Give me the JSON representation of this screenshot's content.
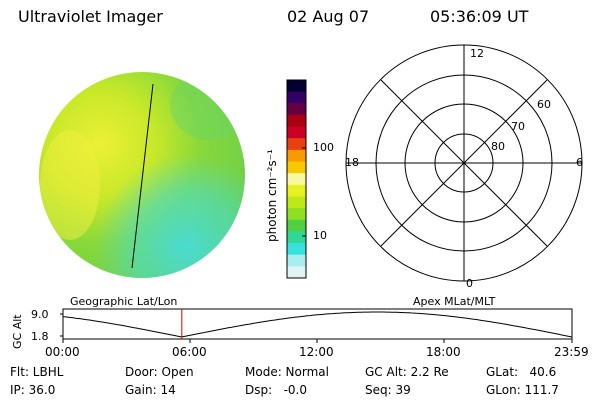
{
  "header": {
    "instrument": "Ultraviolet Imager",
    "date": "02 Aug 07",
    "time": "05:36:09 UT"
  },
  "colorbar": {
    "unit_label": "photon cm⁻²s⁻¹",
    "ticks": [
      "100",
      "10"
    ],
    "colors": [
      "#000033",
      "#330066",
      "#660044",
      "#aa0011",
      "#cc0022",
      "#e84010",
      "#f89a00",
      "#f8c800",
      "#f8f8a0",
      "#e8f020",
      "#c0e818",
      "#8ee020",
      "#50d040",
      "#30d898",
      "#38e0e0",
      "#a8eef0",
      "#e0f4f4"
    ]
  },
  "polar_plot": {
    "mlt_labels": [
      "12",
      "18",
      "6",
      "0"
    ],
    "lat_labels": [
      "60",
      "70",
      "80"
    ]
  },
  "timeline": {
    "y_axis_label": "GC Alt",
    "y_ticks": [
      "9.0",
      "1.8"
    ],
    "left_title": "Geographic Lat/Lon",
    "right_title": "Apex MLat/MLT",
    "x_ticks": [
      "00:00",
      "06:00",
      "12:00",
      "18:00",
      "23:59"
    ],
    "marker_color": "#cc0000",
    "marker_time": "05:36:09"
  },
  "status": {
    "flt": "Flt: LBHL",
    "ip": "IP: 36.0",
    "door": "Door: Open",
    "gain": "Gain: 14",
    "mode": "Mode: Normal",
    "dsp": "Dsp:   -0.0",
    "gc_alt": "GC Alt: 2.2 Re",
    "seq": "Seq: 39",
    "glat": "GLat:   40.6",
    "glon": "GLon: 111.7"
  }
}
